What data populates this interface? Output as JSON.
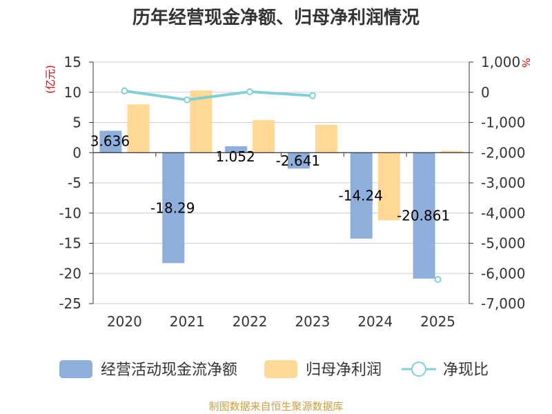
{
  "chart_data": {
    "type": "bar",
    "title": "历年经营现金净额、归母净利润情况",
    "categories": [
      "2020",
      "2021",
      "2022",
      "2023",
      "2024",
      "2025"
    ],
    "series": [
      {
        "name": "经营活动现金流净额",
        "axis": "left",
        "type": "bar",
        "color": "#8eaedb",
        "values": [
          3.636,
          -18.29,
          1.052,
          -2.641,
          -14.24,
          -20.861
        ],
        "labels": [
          "3.636",
          "-18.29",
          "1.052",
          "-2.641",
          "-14.24",
          "-20.861"
        ]
      },
      {
        "name": "归母净利润",
        "axis": "left",
        "type": "bar",
        "color": "#ffd894",
        "values": [
          8.0,
          10.3,
          5.4,
          4.6,
          -11.2,
          0.3
        ]
      },
      {
        "name": "净现比",
        "axis": "right",
        "type": "line",
        "color": "#80cfd6",
        "values": [
          45,
          -250,
          20,
          -115,
          null,
          -6200
        ]
      }
    ],
    "left_axis": {
      "unit": "(亿元)",
      "min": -25,
      "max": 15,
      "step": 5,
      "ticks": [
        "15",
        "10",
        "5",
        "0",
        "-5",
        "-10",
        "-15",
        "-20",
        "-25"
      ]
    },
    "right_axis": {
      "unit": "%",
      "min": -7000,
      "max": 1000,
      "step": 1000,
      "ticks": [
        "1,000",
        "0",
        "-1,000",
        "-2,000",
        "-3,000",
        "-4,000",
        "-5,000",
        "-6,000",
        "-7,000"
      ]
    },
    "legend_position": "bottom",
    "grid": true
  },
  "source": "制图数据来自恒生聚源数据库"
}
